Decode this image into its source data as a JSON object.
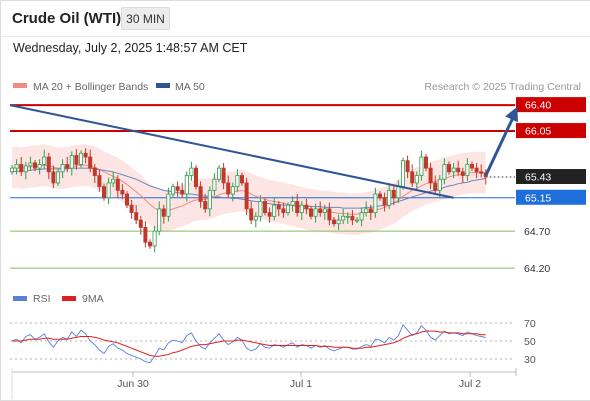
{
  "header": {
    "title": "Crude Oil (WTI)",
    "timeframe": "30 MIN"
  },
  "datetime": "Wednesday, July 2, 2025 1:48:57 AM CET",
  "legend": {
    "items": [
      {
        "label": "MA 20 + Bollinger Bands",
        "color": "#f28b82"
      },
      {
        "label": "MA 50",
        "color": "#2f5597"
      }
    ],
    "credit": "Research © 2025 Trading Central"
  },
  "rsi_legend": {
    "items": [
      {
        "label": "RSI",
        "color": "#5b7fd6"
      },
      {
        "label": "9MA",
        "color": "#e02020"
      }
    ]
  },
  "colors": {
    "resistance": "#cc0000",
    "current": "#222222",
    "support_pivot": "#1e6fd9",
    "support": "#7fbf5f",
    "bullish_candle": "#2e9e4e",
    "bearish_candle": "#c0392b",
    "trendline": "#2f5597",
    "bollinger_fill": "#fde0de"
  },
  "chart_data": [
    {
      "type": "candlestick",
      "title": "",
      "ylim": [
        64.0,
        66.55
      ],
      "x_ticks": [
        "Jun 30",
        "Jul 1",
        "Jul 2"
      ],
      "levels": [
        {
          "value": "66.40",
          "kind": "resistance"
        },
        {
          "value": "66.05",
          "kind": "resistance"
        },
        {
          "value": "65.43",
          "kind": "current"
        },
        {
          "value": "65.15",
          "kind": "pivot"
        },
        {
          "value": "64.70",
          "kind": "support"
        },
        {
          "value": "64.20",
          "kind": "support"
        }
      ],
      "closes": [
        65.55,
        65.6,
        65.5,
        65.58,
        65.62,
        65.55,
        65.6,
        65.7,
        65.5,
        65.35,
        65.5,
        65.6,
        65.55,
        65.72,
        65.6,
        65.75,
        65.7,
        65.55,
        65.45,
        65.3,
        65.15,
        65.35,
        65.4,
        65.25,
        65.2,
        65.05,
        64.95,
        64.85,
        64.75,
        64.55,
        64.5,
        64.7,
        65.0,
        64.9,
        65.2,
        65.3,
        65.25,
        65.2,
        65.45,
        65.55,
        65.3,
        65.1,
        65.0,
        65.25,
        65.4,
        65.55,
        65.35,
        65.2,
        65.3,
        65.45,
        65.35,
        65.0,
        64.85,
        64.9,
        65.1,
        64.95,
        64.9,
        65.05,
        65.0,
        64.95,
        65.05,
        65.1,
        64.95,
        65.05,
        65.0,
        64.9,
        65.0,
        64.95,
        65.0,
        64.85,
        64.8,
        64.85,
        64.9,
        64.9,
        64.85,
        64.85,
        64.95,
        65.0,
        64.95,
        65.2,
        65.15,
        65.05,
        65.25,
        65.15,
        65.3,
        65.65,
        65.5,
        65.35,
        65.45,
        65.7,
        65.55,
        65.35,
        65.25,
        65.4,
        65.6,
        65.5,
        65.55,
        65.5,
        65.45,
        65.6,
        65.55,
        65.5,
        65.48,
        65.43
      ],
      "ma20": [
        65.55,
        65.56,
        65.55,
        65.56,
        65.57,
        65.57,
        65.58,
        65.59,
        65.58,
        65.56,
        65.55,
        65.55,
        65.56,
        65.57,
        65.58,
        65.59,
        65.59,
        65.58,
        65.56,
        65.53,
        65.5,
        65.47,
        65.44,
        65.41,
        65.37,
        65.33,
        65.28,
        65.23,
        65.18,
        65.12,
        65.06,
        65.01,
        64.98,
        64.97,
        64.98,
        65.0,
        65.02,
        65.04,
        65.07,
        65.1,
        65.12,
        65.13,
        65.13,
        65.14,
        65.16,
        65.19,
        65.21,
        65.22,
        65.23,
        65.24,
        65.25,
        65.23,
        65.2,
        65.17,
        65.15,
        65.13,
        65.11,
        65.1,
        65.09,
        65.08,
        65.06,
        65.05,
        65.03,
        65.02,
        65.0,
        64.99,
        64.98,
        64.97,
        64.97,
        64.96,
        64.95,
        64.94,
        64.94,
        64.93,
        64.93,
        64.93,
        64.94,
        64.95,
        64.96,
        64.98,
        65.0,
        65.02,
        65.05,
        65.08,
        65.12,
        65.17,
        65.21,
        65.25,
        65.28,
        65.31,
        65.34,
        65.36,
        65.37,
        65.39,
        65.41,
        65.43,
        65.45,
        65.46,
        65.47,
        65.48,
        65.49,
        65.49,
        65.49,
        65.49
      ],
      "ma50": [
        65.5,
        65.51,
        65.51,
        65.52,
        65.52,
        65.53,
        65.53,
        65.54,
        65.54,
        65.54,
        65.54,
        65.54,
        65.54,
        65.55,
        65.55,
        65.55,
        65.55,
        65.55,
        65.54,
        65.53,
        65.52,
        65.51,
        65.5,
        65.48,
        65.46,
        65.44,
        65.42,
        65.4,
        65.37,
        65.34,
        65.31,
        65.29,
        65.27,
        65.25,
        65.24,
        65.23,
        65.22,
        65.21,
        65.2,
        65.2,
        65.19,
        65.18,
        65.17,
        65.17,
        65.16,
        65.16,
        65.15,
        65.15,
        65.14,
        65.14,
        65.13,
        65.12,
        65.11,
        65.1,
        65.09,
        65.08,
        65.07,
        65.06,
        65.06,
        65.05,
        65.05,
        65.05,
        65.04,
        65.04,
        65.04,
        65.03,
        65.03,
        65.03,
        65.02,
        65.02,
        65.02,
        65.02,
        65.01,
        65.01,
        65.01,
        65.01,
        65.01,
        65.02,
        65.02,
        65.03,
        65.04,
        65.05,
        65.06,
        65.08,
        65.1,
        65.12,
        65.14,
        65.16,
        65.18,
        65.2,
        65.22,
        65.24,
        65.25,
        65.27,
        65.29,
        65.31,
        65.32,
        65.34,
        65.35,
        65.36,
        65.38,
        65.39,
        65.4,
        65.41
      ],
      "boll_width": 0.28,
      "trendline": [
        [
          0,
          66.4
        ],
        [
          96,
          65.15
        ]
      ],
      "forecast_arrow": [
        [
          103,
          65.45
        ],
        [
          109,
          66.38
        ]
      ]
    },
    {
      "type": "line",
      "title": "RSI",
      "ylim": [
        20,
        80
      ],
      "y_ticks": [
        "70",
        "50",
        "30"
      ],
      "series": [
        {
          "name": "RSI",
          "values": [
            50,
            52,
            48,
            55,
            57,
            52,
            54,
            58,
            49,
            43,
            50,
            54,
            52,
            60,
            55,
            62,
            58,
            50,
            46,
            40,
            36,
            44,
            47,
            42,
            40,
            36,
            34,
            32,
            30,
            27,
            26,
            33,
            42,
            40,
            48,
            51,
            50,
            48,
            56,
            59,
            50,
            44,
            41,
            48,
            53,
            58,
            51,
            46,
            49,
            54,
            51,
            42,
            39,
            41,
            47,
            43,
            42,
            46,
            45,
            43,
            46,
            48,
            43,
            46,
            45,
            42,
            45,
            43,
            45,
            41,
            39,
            41,
            43,
            43,
            41,
            41,
            44,
            46,
            44,
            52,
            51,
            48,
            54,
            51,
            56,
            68,
            62,
            56,
            59,
            67,
            62,
            54,
            51,
            56,
            61,
            58,
            59,
            58,
            56,
            60,
            58,
            56,
            55,
            54
          ]
        },
        {
          "name": "9MA",
          "values": [
            50,
            50,
            50,
            51,
            52,
            52,
            52,
            53,
            53,
            52,
            52,
            52,
            52,
            53,
            54,
            55,
            55,
            55,
            54,
            53,
            51,
            50,
            49,
            48,
            46,
            44,
            42,
            40,
            38,
            36,
            34,
            33,
            33,
            34,
            35,
            37,
            38,
            40,
            42,
            44,
            45,
            46,
            46,
            47,
            48,
            49,
            50,
            50,
            50,
            51,
            51,
            50,
            49,
            48,
            47,
            46,
            45,
            45,
            45,
            45,
            45,
            45,
            45,
            45,
            45,
            45,
            45,
            44,
            44,
            44,
            43,
            43,
            43,
            43,
            42,
            42,
            42,
            43,
            43,
            44,
            45,
            46,
            47,
            48,
            50,
            53,
            55,
            57,
            58,
            60,
            61,
            61,
            61,
            60,
            60,
            59,
            59,
            59,
            58,
            58,
            58,
            58,
            57,
            57
          ]
        }
      ]
    }
  ]
}
